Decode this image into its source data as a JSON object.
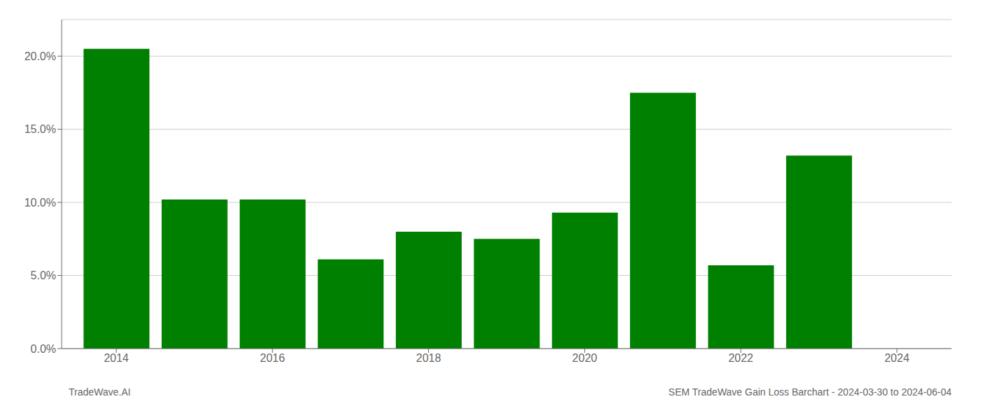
{
  "chart_data": {
    "type": "bar",
    "x": [
      2014,
      2015,
      2016,
      2017,
      2018,
      2019,
      2020,
      2021,
      2022,
      2023
    ],
    "values": [
      0.205,
      0.102,
      0.102,
      0.061,
      0.08,
      0.075,
      0.093,
      0.175,
      0.057,
      0.132
    ],
    "color": "#008000",
    "xlim": [
      2013.3,
      2024.7
    ],
    "xticks": [
      2014,
      2016,
      2018,
      2020,
      2022,
      2024
    ],
    "ylim": [
      0.0,
      0.225
    ],
    "yticks": [
      {
        "value": 0.0,
        "label": "0.0%"
      },
      {
        "value": 0.05,
        "label": "5.0%"
      },
      {
        "value": 0.1,
        "label": "10.0%"
      },
      {
        "value": 0.15,
        "label": "15.0%"
      },
      {
        "value": 0.2,
        "label": "20.0%"
      }
    ],
    "grid": true,
    "annotations": [
      "TradeWave.AI",
      "SEM TradeWave Gain Loss Barchart - 2024-03-30 to 2024-06-04"
    ]
  }
}
